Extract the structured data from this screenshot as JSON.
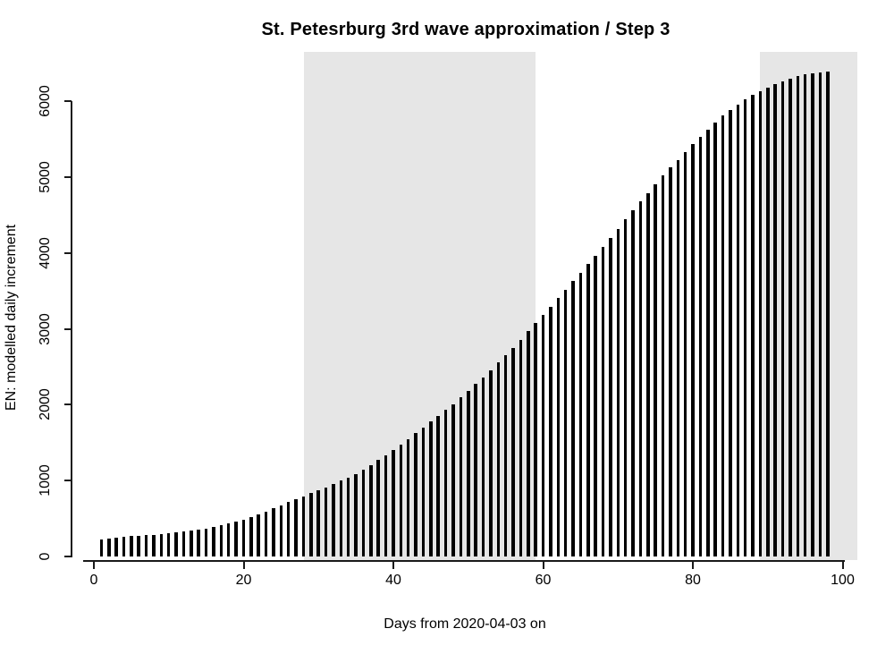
{
  "chart_data": {
    "type": "bar",
    "title": "St. Petesrburg 3rd wave approximation / Step 3",
    "xlabel": "Days from 2020-04-03 on",
    "ylabel": "EN: modelled daily increment",
    "x_description": "day index, one bar per day",
    "days_range": [
      1,
      98
    ],
    "x_ticks": [
      0,
      20,
      40,
      60,
      80,
      100
    ],
    "y_ticks": [
      0,
      1000,
      2000,
      3000,
      4000,
      5000,
      6000
    ],
    "xlim": [
      -1.5,
      102
    ],
    "ylim": [
      0,
      6660
    ],
    "grid": false,
    "legend": false,
    "values": [
      230,
      239,
      248,
      258,
      268,
      274,
      281,
      287,
      295,
      303,
      313,
      326,
      340,
      355,
      370,
      390,
      411,
      432,
      455,
      482,
      515,
      550,
      590,
      632,
      675,
      720,
      757,
      795,
      832,
      870,
      914,
      958,
      1000,
      1042,
      1090,
      1145,
      1208,
      1272,
      1336,
      1400,
      1475,
      1550,
      1625,
      1700,
      1778,
      1855,
      1933,
      2010,
      2098,
      2185,
      2273,
      2360,
      2458,
      2555,
      2653,
      2750,
      2858,
      2966,
      3074,
      3182,
      3290,
      3403,
      3515,
      3628,
      3740,
      3853,
      3967,
      4080,
      4200,
      4320,
      4440,
      4560,
      4675,
      4790,
      4905,
      5020,
      5124,
      5228,
      5331,
      5435,
      5529,
      5623,
      5716,
      5810,
      5883,
      5957,
      6030,
      6080,
      6130,
      6180,
      6230,
      6265,
      6300,
      6325,
      6350,
      6365,
      6380,
      6390
    ],
    "highlight_bands_days": [
      {
        "from_day": 28,
        "to_day": 59
      },
      {
        "from_day": 89,
        "to_day": 102
      }
    ]
  },
  "colors": {
    "bar": "#000000",
    "band": "#E6E6E6",
    "axis": "#1a1a1a",
    "background": "#FFFFFF",
    "text": "#000000"
  }
}
